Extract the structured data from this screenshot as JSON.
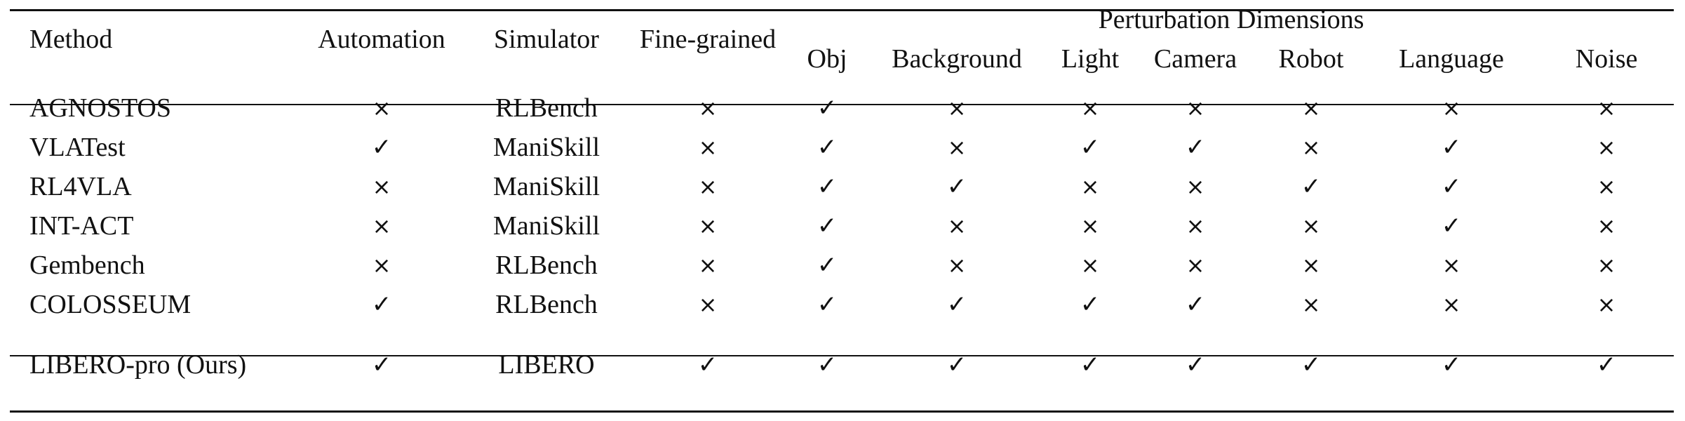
{
  "table": {
    "columns": {
      "method": "Method",
      "automation": "Automation",
      "simulator": "Simulator",
      "fine_grained": "Fine-grained",
      "group_label": "Perturbation Dimensions",
      "dims": [
        "Obj",
        "Background",
        "Light",
        "Camera",
        "Robot",
        "Language",
        "Noise"
      ]
    },
    "symbols": {
      "yes": "✓",
      "no": "×"
    },
    "rows": [
      {
        "method": "AGNOSTOS",
        "automation": "×",
        "simulator": "RLBench",
        "fine_grained": "×",
        "dims": [
          "✓",
          "×",
          "×",
          "×",
          "×",
          "×",
          "×"
        ]
      },
      {
        "method": "VLATest",
        "automation": "✓",
        "simulator": "ManiSkill",
        "fine_grained": "×",
        "dims": [
          "✓",
          "×",
          "✓",
          "✓",
          "×",
          "✓",
          "×"
        ]
      },
      {
        "method": "RL4VLA",
        "automation": "×",
        "simulator": "ManiSkill",
        "fine_grained": "×",
        "dims": [
          "✓",
          "✓",
          "×",
          "×",
          "✓",
          "✓",
          "×"
        ]
      },
      {
        "method": "INT-ACT",
        "automation": "×",
        "simulator": "ManiSkill",
        "fine_grained": "×",
        "dims": [
          "✓",
          "×",
          "×",
          "×",
          "×",
          "✓",
          "×"
        ]
      },
      {
        "method": "Gembench",
        "automation": "×",
        "simulator": "RLBench",
        "fine_grained": "×",
        "dims": [
          "✓",
          "×",
          "×",
          "×",
          "×",
          "×",
          "×"
        ]
      },
      {
        "method": "COLOSSEUM",
        "automation": "✓",
        "simulator": "RLBench",
        "fine_grained": "×",
        "dims": [
          "✓",
          "✓",
          "✓",
          "✓",
          "×",
          "×",
          "×"
        ]
      }
    ],
    "ours": {
      "method": "LIBERO-pro (Ours)",
      "automation": "✓",
      "simulator": "LIBERO",
      "fine_grained": "✓",
      "dims": [
        "✓",
        "✓",
        "✓",
        "✓",
        "✓",
        "✓",
        "✓"
      ]
    }
  }
}
